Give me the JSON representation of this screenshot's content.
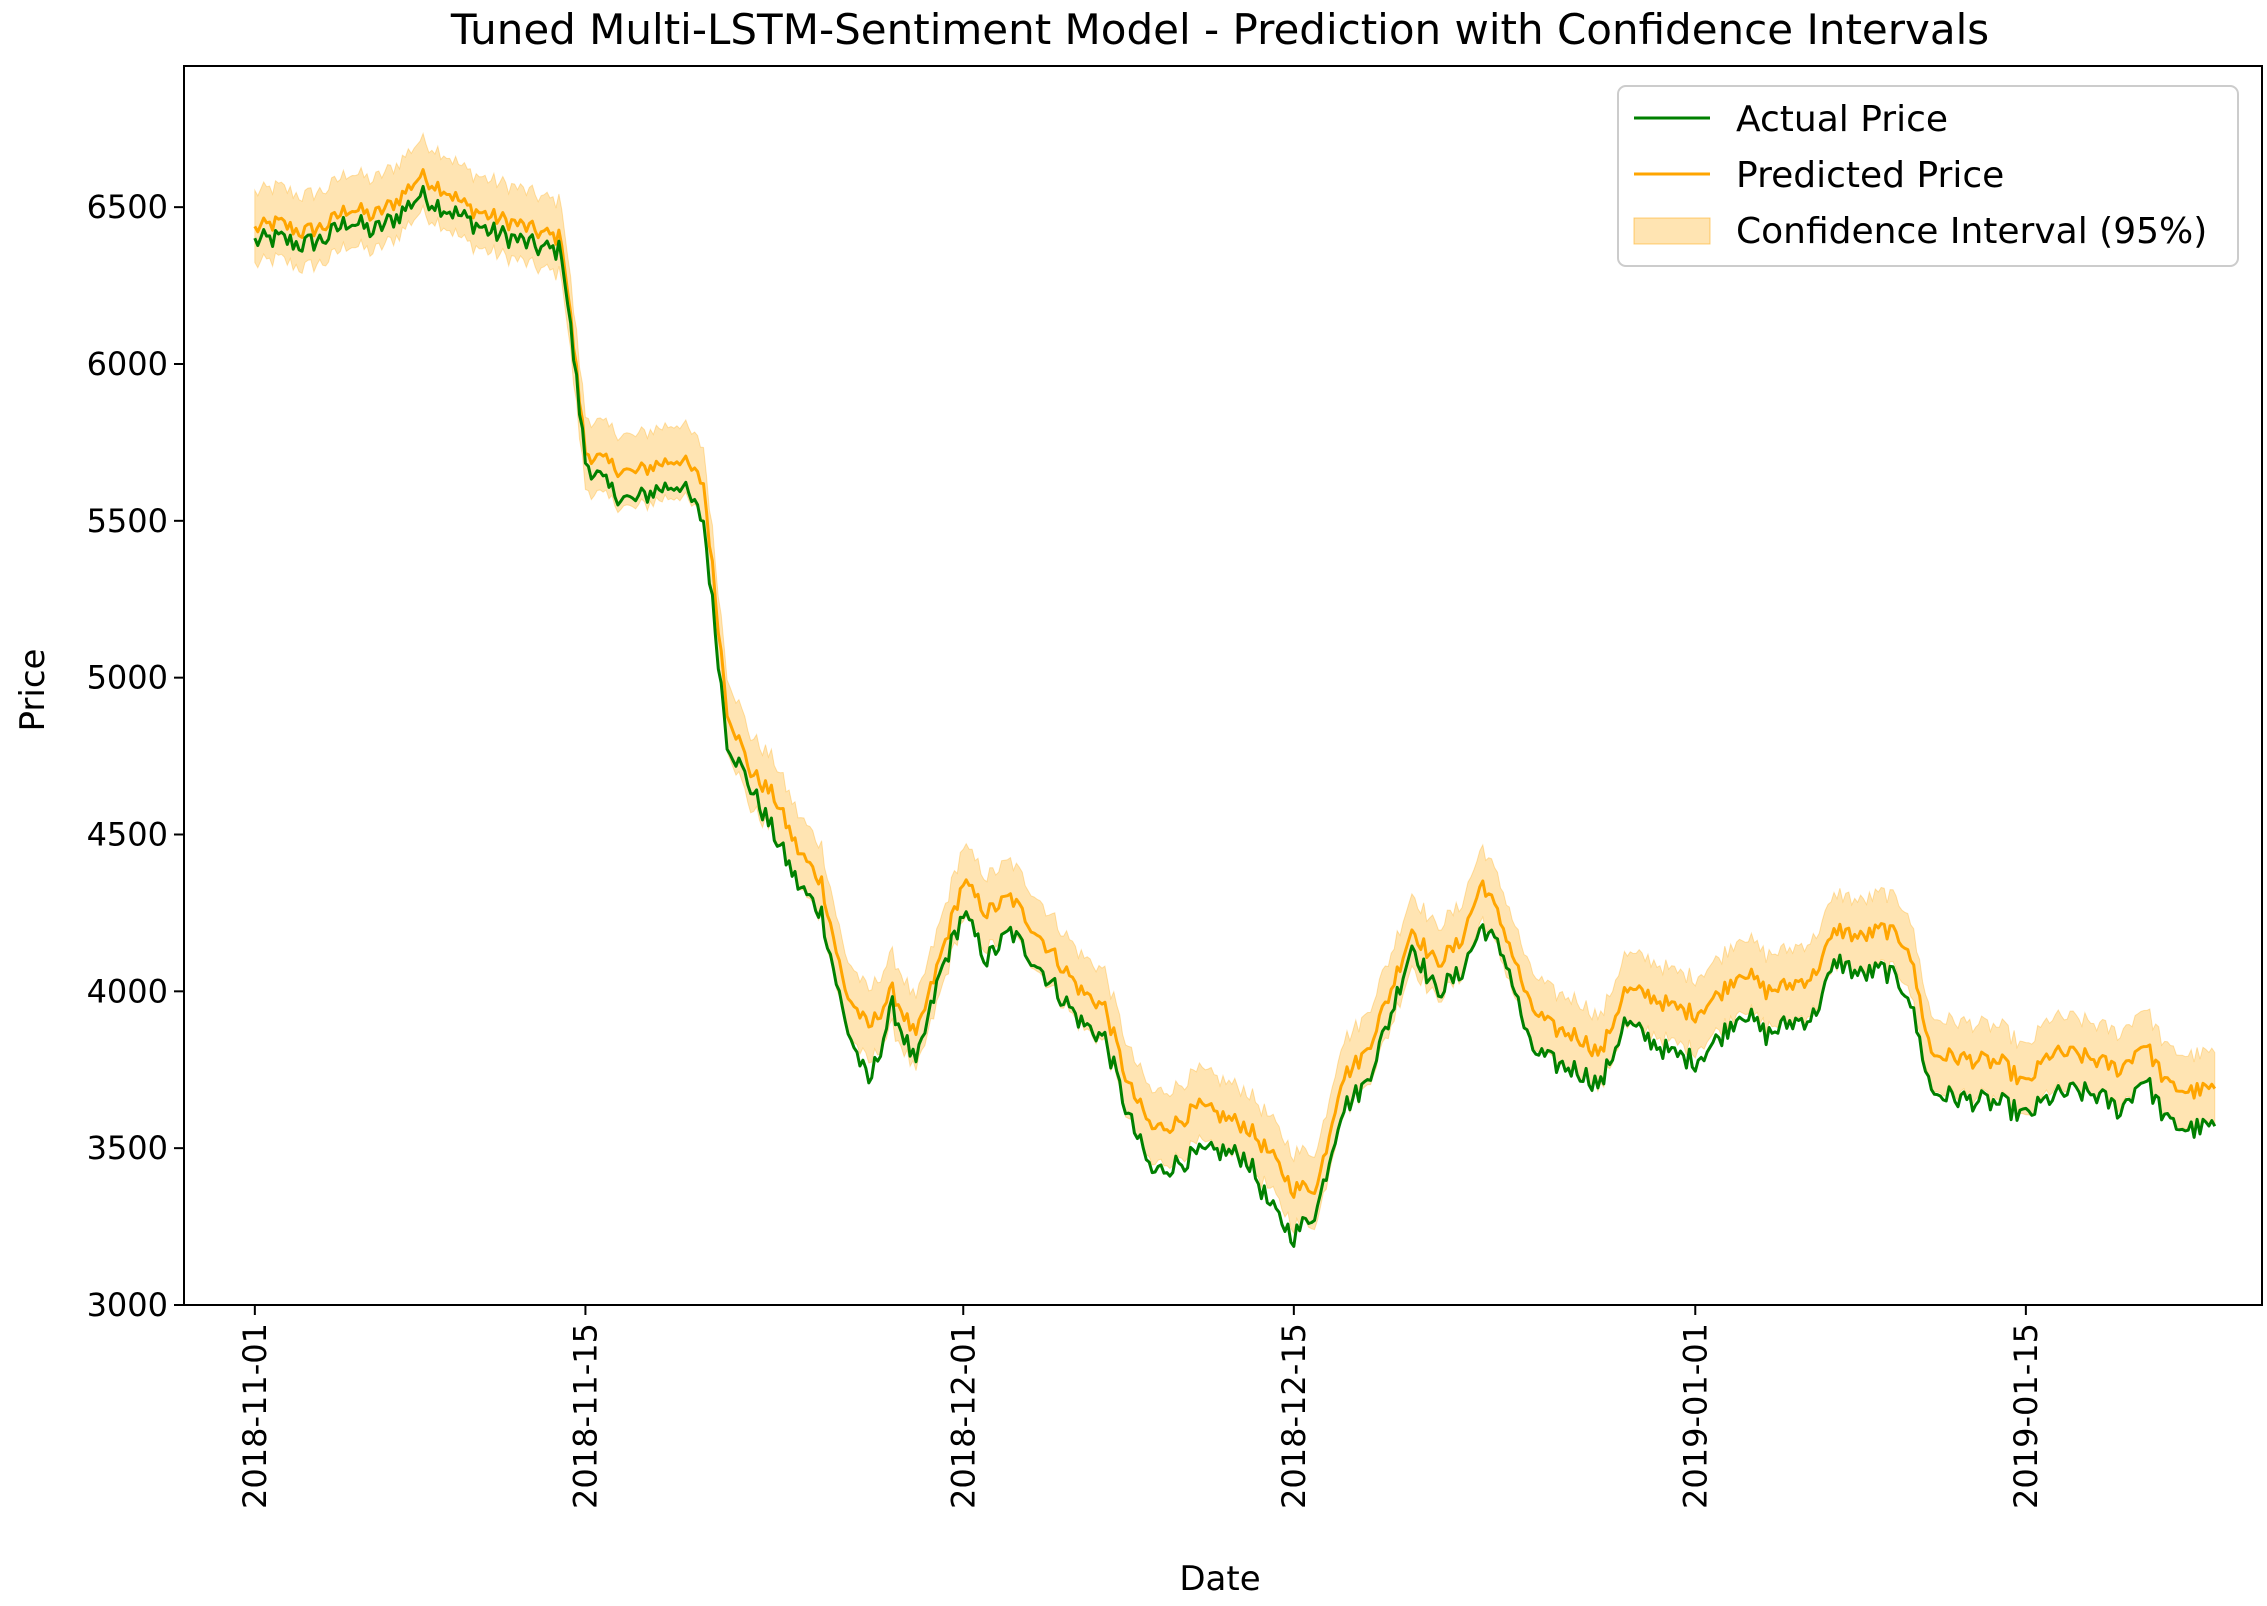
{
  "chart_data": {
    "type": "line",
    "title": "Tuned Multi-LSTM-Sentiment Model - Prediction with Confidence Intervals",
    "xlabel": "Date",
    "ylabel": "Price",
    "xlim": [
      "2018-10-29",
      "2019-01-25"
    ],
    "ylim": [
      3000,
      6950
    ],
    "grid": false,
    "legend_position": "top-right",
    "x_ticks": [
      "2018-11-01",
      "2018-11-15",
      "2018-12-01",
      "2018-12-15",
      "2019-01-01",
      "2019-01-15"
    ],
    "y_ticks": [
      3000,
      3500,
      4000,
      4500,
      5000,
      5500,
      6000,
      6500
    ],
    "colors": {
      "actual": "#008000",
      "predicted": "#ffa500",
      "band": "#ffa500"
    },
    "legend": {
      "actual": "Actual Price",
      "predicted": "Predicted Price",
      "band": "Confidence Interval (95%)"
    },
    "band_halfwidth": 115,
    "series": [
      {
        "name": "Actual Price",
        "x": [
          "2018-11-01",
          "2018-11-02",
          "2018-11-03",
          "2018-11-04",
          "2018-11-05",
          "2018-11-06",
          "2018-11-07",
          "2018-11-08",
          "2018-11-09",
          "2018-11-10",
          "2018-11-11",
          "2018-11-12",
          "2018-11-13",
          "2018-11-14",
          "2018-11-15",
          "2018-11-16",
          "2018-11-17",
          "2018-11-18",
          "2018-11-19",
          "2018-11-20",
          "2018-11-21",
          "2018-11-22",
          "2018-11-23",
          "2018-11-24",
          "2018-11-25",
          "2018-11-26",
          "2018-11-27",
          "2018-11-28",
          "2018-11-29",
          "2018-11-30",
          "2018-12-01",
          "2018-12-02",
          "2018-12-03",
          "2018-12-04",
          "2018-12-05",
          "2018-12-06",
          "2018-12-07",
          "2018-12-08",
          "2018-12-09",
          "2018-12-10",
          "2018-12-11",
          "2018-12-12",
          "2018-12-13",
          "2018-12-14",
          "2018-12-15",
          "2018-12-16",
          "2018-12-17",
          "2018-12-18",
          "2018-12-19",
          "2018-12-20",
          "2018-12-21",
          "2018-12-22",
          "2018-12-23",
          "2018-12-24",
          "2018-12-25",
          "2018-12-26",
          "2018-12-27",
          "2018-12-28",
          "2018-12-29",
          "2018-12-30",
          "2018-12-31",
          "2019-01-01",
          "2019-01-02",
          "2019-01-03",
          "2019-01-04",
          "2019-01-05",
          "2019-01-06",
          "2019-01-07",
          "2019-01-08",
          "2019-01-09",
          "2019-01-10",
          "2019-01-11",
          "2019-01-12",
          "2019-01-13",
          "2019-01-14",
          "2019-01-15",
          "2019-01-16",
          "2019-01-17",
          "2019-01-18",
          "2019-01-19",
          "2019-01-20",
          "2019-01-21",
          "2019-01-22",
          "2019-01-23"
        ],
        "values": [
          6390,
          6400,
          6380,
          6400,
          6460,
          6420,
          6470,
          6540,
          6500,
          6460,
          6420,
          6400,
          6370,
          6360,
          5690,
          5600,
          5560,
          5600,
          5620,
          5500,
          4800,
          4650,
          4500,
          4340,
          4250,
          3900,
          3700,
          3950,
          3760,
          4050,
          4250,
          4100,
          4190,
          4100,
          4000,
          3900,
          3850,
          3600,
          3420,
          3450,
          3480,
          3490,
          3470,
          3310,
          3220,
          3310,
          3620,
          3700,
          3900,
          4150,
          4000,
          4050,
          4210,
          4100,
          3820,
          3770,
          3750,
          3700,
          3900,
          3850,
          3800,
          3780,
          3850,
          3940,
          3860,
          3900,
          3920,
          4100,
          4050,
          4070,
          4000,
          3680,
          3660,
          3650,
          3640,
          3600,
          3660,
          3680,
          3670,
          3620,
          3730,
          3580,
          3560,
          3570
        ]
      },
      {
        "name": "Predicted Price",
        "x": [
          "2018-11-01",
          "2018-11-02",
          "2018-11-03",
          "2018-11-04",
          "2018-11-05",
          "2018-11-06",
          "2018-11-07",
          "2018-11-08",
          "2018-11-09",
          "2018-11-10",
          "2018-11-11",
          "2018-11-12",
          "2018-11-13",
          "2018-11-14",
          "2018-11-15",
          "2018-11-16",
          "2018-11-17",
          "2018-11-18",
          "2018-11-19",
          "2018-11-20",
          "2018-11-21",
          "2018-11-22",
          "2018-11-23",
          "2018-11-24",
          "2018-11-25",
          "2018-11-26",
          "2018-11-27",
          "2018-11-28",
          "2018-11-29",
          "2018-11-30",
          "2018-12-01",
          "2018-12-02",
          "2018-12-03",
          "2018-12-04",
          "2018-12-05",
          "2018-12-06",
          "2018-12-07",
          "2018-12-08",
          "2018-12-09",
          "2018-12-10",
          "2018-12-11",
          "2018-12-12",
          "2018-12-13",
          "2018-12-14",
          "2018-12-15",
          "2018-12-16",
          "2018-12-17",
          "2018-12-18",
          "2018-12-19",
          "2018-12-20",
          "2018-12-21",
          "2018-12-22",
          "2018-12-23",
          "2018-12-24",
          "2018-12-25",
          "2018-12-26",
          "2018-12-27",
          "2018-12-28",
          "2018-12-29",
          "2018-12-30",
          "2018-12-31",
          "2019-01-01",
          "2019-01-02",
          "2019-01-03",
          "2019-01-04",
          "2019-01-05",
          "2019-01-06",
          "2019-01-07",
          "2019-01-08",
          "2019-01-09",
          "2019-01-10",
          "2019-01-11",
          "2019-01-12",
          "2019-01-13",
          "2019-01-14",
          "2019-01-15",
          "2019-01-16",
          "2019-01-17",
          "2019-01-18",
          "2019-01-19",
          "2019-01-20",
          "2019-01-21",
          "2019-01-22",
          "2019-01-23"
        ],
        "values": [
          6430,
          6450,
          6420,
          6440,
          6500,
          6470,
          6520,
          6600,
          6560,
          6500,
          6470,
          6450,
          6420,
          6400,
          5720,
          5680,
          5650,
          5680,
          5700,
          5620,
          4900,
          4700,
          4620,
          4450,
          4350,
          4000,
          3880,
          4000,
          3850,
          4100,
          4350,
          4250,
          4300,
          4200,
          4100,
          4000,
          3950,
          3700,
          3560,
          3580,
          3630,
          3600,
          3570,
          3480,
          3370,
          3380,
          3720,
          3800,
          3980,
          4200,
          4090,
          4150,
          4350,
          4180,
          3950,
          3880,
          3860,
          3800,
          4000,
          3990,
          3950,
          3930,
          3990,
          4070,
          4000,
          4020,
          4050,
          4200,
          4170,
          4200,
          4150,
          3800,
          3790,
          3780,
          3770,
          3700,
          3800,
          3800,
          3780,
          3750,
          3840,
          3700,
          3680,
          3690
        ]
      }
    ]
  }
}
